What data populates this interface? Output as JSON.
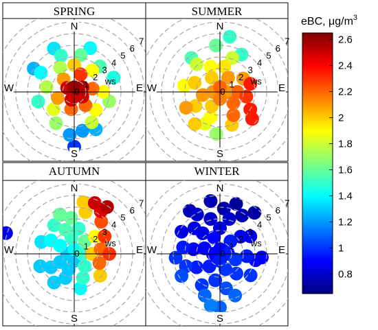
{
  "chart_data": {
    "type": "polar-bivariate",
    "colorbar": {
      "title": "eBC, μg/m",
      "title_superscript": "3",
      "range": [
        0.65,
        2.65
      ],
      "ticks": [
        "0.8",
        "1",
        "1.2",
        "1.4",
        "1.6",
        "1.8",
        "2",
        "2.2",
        "2.4",
        "2.6"
      ],
      "colormap": [
        "#00007f",
        "#0000ff",
        "#007fff",
        "#00ffff",
        "#7fff7f",
        "#ffff00",
        "#ff7f00",
        "#ff0000",
        "#7f0000"
      ]
    },
    "radial_axis": {
      "unit_label": "ws",
      "ticks": [
        "0",
        "1",
        "2",
        "3",
        "4",
        "5",
        "6",
        "7"
      ],
      "max": 7
    },
    "directions": {
      "n": "N",
      "s": "S",
      "e": "E",
      "w": "W"
    },
    "panels": [
      {
        "title": "SPRING",
        "points": [
          [
            0,
            0.4,
            2.6
          ],
          [
            60,
            0.8,
            2.55
          ],
          [
            120,
            0.8,
            2.5
          ],
          [
            200,
            0.7,
            2.5
          ],
          [
            300,
            0.7,
            2.5
          ],
          [
            20,
            1.6,
            2.3
          ],
          [
            80,
            1.6,
            2.2
          ],
          [
            140,
            1.5,
            2.2
          ],
          [
            190,
            1.5,
            2.2
          ],
          [
            250,
            1.5,
            2.1
          ],
          [
            320,
            1.4,
            2.1
          ],
          [
            0,
            2.3,
            2.0
          ],
          [
            40,
            2.4,
            1.9
          ],
          [
            90,
            2.5,
            1.9
          ],
          [
            130,
            2.4,
            1.9
          ],
          [
            230,
            2.3,
            1.85
          ],
          [
            280,
            2.4,
            1.75
          ],
          [
            330,
            2.4,
            1.75
          ],
          [
            10,
            3.2,
            1.6
          ],
          [
            45,
            3.1,
            1.55
          ],
          [
            105,
            3.1,
            1.7
          ],
          [
            150,
            3.0,
            1.8
          ],
          [
            210,
            3.1,
            1.7
          ],
          [
            255,
            3.2,
            1.5
          ],
          [
            300,
            3.3,
            1.4
          ],
          [
            340,
            3.3,
            1.5
          ],
          [
            20,
            4.0,
            1.4
          ],
          [
            335,
            4.1,
            1.35
          ],
          [
            300,
            4.0,
            1.25
          ],
          [
            70,
            3.6,
            1.45
          ],
          [
            168,
            3.4,
            1.2
          ],
          [
            150,
            3.7,
            1.25
          ],
          [
            186,
            3.7,
            1.2
          ],
          [
            180,
            4.7,
            1.0
          ]
        ]
      },
      {
        "title": "SUMMER",
        "points": [
          [
            0,
            0.4,
            2.2
          ],
          [
            90,
            0.6,
            2.1
          ],
          [
            180,
            0.6,
            2.15
          ],
          [
            270,
            0.6,
            2.1
          ],
          [
            30,
            1.4,
            2.1
          ],
          [
            90,
            1.5,
            2.2
          ],
          [
            130,
            1.5,
            2.2
          ],
          [
            210,
            1.4,
            2.0
          ],
          [
            260,
            1.5,
            2.1
          ],
          [
            330,
            1.4,
            2.0
          ],
          [
            10,
            2.2,
            1.95
          ],
          [
            60,
            2.3,
            2.1
          ],
          [
            100,
            2.3,
            2.3
          ],
          [
            150,
            2.3,
            2.2
          ],
          [
            200,
            2.3,
            1.9
          ],
          [
            240,
            2.4,
            2.0
          ],
          [
            290,
            2.3,
            2.0
          ],
          [
            340,
            2.3,
            1.9
          ],
          [
            20,
            3.1,
            1.8
          ],
          [
            75,
            2.7,
            2.35
          ],
          [
            120,
            3.0,
            2.35
          ],
          [
            160,
            3.0,
            2.0
          ],
          [
            205,
            3.0,
            1.85
          ],
          [
            245,
            3.2,
            2.1
          ],
          [
            280,
            3.1,
            1.9
          ],
          [
            320,
            3.1,
            1.8
          ],
          [
            130,
            3.6,
            2.35
          ],
          [
            355,
            4.0,
            1.6
          ],
          [
            320,
            3.8,
            1.55
          ],
          [
            30,
            3.7,
            1.5
          ],
          [
            10,
            4.8,
            1.5
          ],
          [
            218,
            3.5,
            2.0
          ],
          [
            185,
            3.6,
            1.7
          ]
        ]
      },
      {
        "title": "AUTUMN",
        "points": [
          [
            0,
            0.4,
            1.4
          ],
          [
            90,
            0.7,
            1.5
          ],
          [
            180,
            0.6,
            1.3
          ],
          [
            270,
            0.6,
            1.3
          ],
          [
            40,
            1.4,
            1.6
          ],
          [
            90,
            1.5,
            2.0
          ],
          [
            140,
            1.4,
            1.5
          ],
          [
            200,
            1.4,
            1.3
          ],
          [
            240,
            1.4,
            1.3
          ],
          [
            300,
            1.4,
            1.4
          ],
          [
            350,
            1.4,
            1.5
          ],
          [
            10,
            2.2,
            1.5
          ],
          [
            50,
            2.3,
            1.9
          ],
          [
            80,
            2.3,
            2.2
          ],
          [
            110,
            2.3,
            2.2
          ],
          [
            160,
            2.2,
            1.5
          ],
          [
            200,
            2.2,
            1.3
          ],
          [
            240,
            2.3,
            1.3
          ],
          [
            300,
            2.3,
            1.4
          ],
          [
            340,
            2.2,
            1.55
          ],
          [
            60,
            3.0,
            2.3
          ],
          [
            90,
            3.0,
            2.3
          ],
          [
            130,
            2.9,
            2.0
          ],
          [
            170,
            3.0,
            1.4
          ],
          [
            215,
            3.0,
            1.3
          ],
          [
            250,
            3.1,
            1.3
          ],
          [
            290,
            3.0,
            1.35
          ],
          [
            325,
            3.0,
            1.5
          ],
          [
            355,
            3.1,
            1.6
          ],
          [
            15,
            3.7,
            2.0
          ],
          [
            40,
            3.6,
            2.25
          ],
          [
            32,
            4.3,
            2.45
          ],
          [
            10,
            4.5,
            2.0
          ],
          [
            340,
            3.6,
            1.6
          ],
          [
            22,
            4.7,
            2.5
          ],
          [
            35,
            4.9,
            2.55
          ],
          [
            287,
            6.1,
            0.85
          ]
        ]
      },
      {
        "title": "WINTER",
        "points": [
          [
            0,
            0.4,
            0.9
          ],
          [
            90,
            0.7,
            0.95
          ],
          [
            180,
            0.6,
            0.95
          ],
          [
            270,
            0.6,
            0.9
          ],
          [
            40,
            1.4,
            0.95
          ],
          [
            110,
            1.4,
            1.0
          ],
          [
            160,
            1.4,
            1.0
          ],
          [
            220,
            1.4,
            0.95
          ],
          [
            290,
            1.4,
            0.9
          ],
          [
            340,
            1.5,
            0.9
          ],
          [
            0,
            2.2,
            0.85
          ],
          [
            50,
            2.3,
            0.9
          ],
          [
            95,
            2.3,
            0.95
          ],
          [
            140,
            2.2,
            1.0
          ],
          [
            190,
            2.3,
            1.0
          ],
          [
            240,
            2.3,
            0.95
          ],
          [
            280,
            2.3,
            0.9
          ],
          [
            320,
            2.3,
            0.85
          ],
          [
            15,
            3.1,
            0.8
          ],
          [
            60,
            3.0,
            0.85
          ],
          [
            100,
            3.1,
            0.9
          ],
          [
            125,
            3.2,
            1.0
          ],
          [
            170,
            3.0,
            1.05
          ],
          [
            210,
            3.1,
            1.0
          ],
          [
            250,
            3.1,
            1.0
          ],
          [
            280,
            3.2,
            0.95
          ],
          [
            315,
            3.1,
            0.85
          ],
          [
            345,
            3.1,
            0.8
          ],
          [
            5,
            3.9,
            0.75
          ],
          [
            330,
            3.9,
            0.8
          ],
          [
            30,
            3.8,
            0.75
          ],
          [
            300,
            3.8,
            0.85
          ],
          [
            265,
            3.8,
            1.0
          ],
          [
            240,
            3.8,
            1.05
          ],
          [
            200,
            3.8,
            1.1
          ],
          [
            160,
            3.8,
            1.1
          ],
          [
            95,
            3.6,
            0.9
          ],
          [
            190,
            4.5,
            1.15
          ],
          [
            350,
            4.6,
            0.75
          ],
          [
            18,
            4.5,
            0.7
          ],
          [
            325,
            4.5,
            0.75
          ],
          [
            40,
            4.6,
            0.72
          ],
          [
            180,
            4.6,
            1.1
          ]
        ]
      }
    ]
  }
}
